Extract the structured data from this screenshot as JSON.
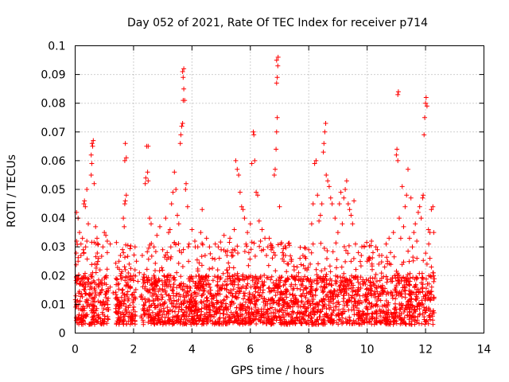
{
  "chart_data": {
    "type": "scatter",
    "title": "Day 052 of 2021, Rate Of TEC Index for receiver p714",
    "xlabel": "GPS time / hours",
    "ylabel": "ROTI / TECUs",
    "xlim": [
      0,
      14
    ],
    "ylim": [
      0,
      0.1
    ],
    "xticks": [
      0,
      2,
      4,
      6,
      8,
      10,
      12,
      14
    ],
    "xtick_labels": [
      "0",
      "2",
      "4",
      "6",
      "8",
      "10",
      "12",
      "14"
    ],
    "yticks": [
      0,
      0.01,
      0.02,
      0.03,
      0.04,
      0.05,
      0.06,
      0.07,
      0.08,
      0.09,
      0.1
    ],
    "ytick_labels": [
      "0",
      "0.01",
      "0.02",
      "0.03",
      "0.04",
      "0.05",
      "0.06",
      "0.07",
      "0.08",
      "0.09",
      "0.1"
    ],
    "grid": true,
    "marker": "+",
    "color": "#ff0000",
    "data_span_hours": [
      0,
      12.3
    ],
    "series": [
      {
        "name": "ROTI",
        "points": [
          [
            0.05,
            0.042
          ],
          [
            0.1,
            0.04
          ],
          [
            0.15,
            0.035
          ],
          [
            0.2,
            0.031
          ],
          [
            0.25,
            0.033
          ],
          [
            0.3,
            0.045
          ],
          [
            0.32,
            0.046
          ],
          [
            0.35,
            0.044
          ],
          [
            0.4,
            0.05
          ],
          [
            0.45,
            0.038
          ],
          [
            0.55,
            0.062
          ],
          [
            0.58,
            0.066
          ],
          [
            0.6,
            0.065
          ],
          [
            0.62,
            0.067
          ],
          [
            0.57,
            0.059
          ],
          [
            0.55,
            0.055
          ],
          [
            0.65,
            0.052
          ],
          [
            0.7,
            0.037
          ],
          [
            0.75,
            0.033
          ],
          [
            0.3,
            0.028
          ],
          [
            0.28,
            0.029
          ],
          [
            0.2,
            0.027
          ],
          [
            0.1,
            0.025
          ],
          [
            0.05,
            0.032
          ],
          [
            0.95,
            0.03
          ],
          [
            1.0,
            0.035
          ],
          [
            1.05,
            0.034
          ],
          [
            1.1,
            0.032
          ],
          [
            1.2,
            0.016
          ],
          [
            1.4,
            0.019
          ],
          [
            1.5,
            0.025
          ],
          [
            1.55,
            0.027
          ],
          [
            1.65,
            0.04
          ],
          [
            1.7,
            0.045
          ],
          [
            1.72,
            0.046
          ],
          [
            1.75,
            0.048
          ],
          [
            1.7,
            0.06
          ],
          [
            1.72,
            0.066
          ],
          [
            1.75,
            0.061
          ],
          [
            1.68,
            0.037
          ],
          [
            1.85,
            0.024
          ],
          [
            1.9,
            0.02
          ],
          [
            1.95,
            0.019
          ],
          [
            2.05,
            0.03
          ],
          [
            2.1,
            0.025
          ],
          [
            2.2,
            0.021
          ],
          [
            2.3,
            0.027
          ],
          [
            2.4,
            0.052
          ],
          [
            2.42,
            0.054
          ],
          [
            2.45,
            0.065
          ],
          [
            2.5,
            0.065
          ],
          [
            2.48,
            0.056
          ],
          [
            2.5,
            0.053
          ],
          [
            2.55,
            0.04
          ],
          [
            2.6,
            0.038
          ],
          [
            2.7,
            0.03
          ],
          [
            2.8,
            0.034
          ],
          [
            2.9,
            0.037
          ],
          [
            3.0,
            0.029
          ],
          [
            3.1,
            0.04
          ],
          [
            3.2,
            0.035
          ],
          [
            3.25,
            0.036
          ],
          [
            3.3,
            0.045
          ],
          [
            3.35,
            0.049
          ],
          [
            3.4,
            0.056
          ],
          [
            3.45,
            0.05
          ],
          [
            3.5,
            0.041
          ],
          [
            3.55,
            0.038
          ],
          [
            3.6,
            0.066
          ],
          [
            3.62,
            0.069
          ],
          [
            3.65,
            0.072
          ],
          [
            3.68,
            0.073
          ],
          [
            3.7,
            0.081
          ],
          [
            3.72,
            0.085
          ],
          [
            3.7,
            0.089
          ],
          [
            3.68,
            0.091
          ],
          [
            3.72,
            0.092
          ],
          [
            3.75,
            0.081
          ],
          [
            3.8,
            0.052
          ],
          [
            3.78,
            0.05
          ],
          [
            3.85,
            0.044
          ],
          [
            4.0,
            0.036
          ],
          [
            4.1,
            0.032
          ],
          [
            4.2,
            0.03
          ],
          [
            4.3,
            0.035
          ],
          [
            4.35,
            0.043
          ],
          [
            4.5,
            0.033
          ],
          [
            4.6,
            0.03
          ],
          [
            4.8,
            0.031
          ],
          [
            4.9,
            0.03
          ],
          [
            5.0,
            0.029
          ],
          [
            5.1,
            0.034
          ],
          [
            5.2,
            0.027
          ],
          [
            5.35,
            0.028
          ],
          [
            5.45,
            0.036
          ],
          [
            5.5,
            0.06
          ],
          [
            5.55,
            0.057
          ],
          [
            5.6,
            0.055
          ],
          [
            5.65,
            0.049
          ],
          [
            5.7,
            0.044
          ],
          [
            5.75,
            0.043
          ],
          [
            5.8,
            0.04
          ],
          [
            5.9,
            0.035
          ],
          [
            6.0,
            0.038
          ],
          [
            6.05,
            0.059
          ],
          [
            6.1,
            0.07
          ],
          [
            6.12,
            0.069
          ],
          [
            6.15,
            0.06
          ],
          [
            6.2,
            0.049
          ],
          [
            6.25,
            0.048
          ],
          [
            6.3,
            0.039
          ],
          [
            6.4,
            0.036
          ],
          [
            6.5,
            0.033
          ],
          [
            6.6,
            0.03
          ],
          [
            6.7,
            0.031
          ],
          [
            6.8,
            0.028
          ],
          [
            6.82,
            0.055
          ],
          [
            6.85,
            0.057
          ],
          [
            6.88,
            0.064
          ],
          [
            6.9,
            0.07
          ],
          [
            6.92,
            0.075
          ],
          [
            6.9,
            0.087
          ],
          [
            6.92,
            0.089
          ],
          [
            6.94,
            0.093
          ],
          [
            6.9,
            0.095
          ],
          [
            6.95,
            0.096
          ],
          [
            7.0,
            0.044
          ],
          [
            7.1,
            0.028
          ],
          [
            7.2,
            0.027
          ],
          [
            7.3,
            0.024
          ],
          [
            7.4,
            0.025
          ],
          [
            7.5,
            0.022
          ],
          [
            7.6,
            0.023
          ],
          [
            7.7,
            0.026
          ],
          [
            7.8,
            0.027
          ],
          [
            7.9,
            0.026
          ],
          [
            8.0,
            0.029
          ],
          [
            8.1,
            0.038
          ],
          [
            8.15,
            0.045
          ],
          [
            8.2,
            0.059
          ],
          [
            8.25,
            0.06
          ],
          [
            8.3,
            0.048
          ],
          [
            8.35,
            0.039
          ],
          [
            8.4,
            0.041
          ],
          [
            8.45,
            0.045
          ],
          [
            8.5,
            0.063
          ],
          [
            8.52,
            0.066
          ],
          [
            8.55,
            0.07
          ],
          [
            8.58,
            0.073
          ],
          [
            8.6,
            0.055
          ],
          [
            8.65,
            0.053
          ],
          [
            8.7,
            0.051
          ],
          [
            8.75,
            0.047
          ],
          [
            8.8,
            0.045
          ],
          [
            8.9,
            0.04
          ],
          [
            9.0,
            0.035
          ],
          [
            9.05,
            0.045
          ],
          [
            9.1,
            0.049
          ],
          [
            9.2,
            0.047
          ],
          [
            9.25,
            0.05
          ],
          [
            9.3,
            0.053
          ],
          [
            9.35,
            0.045
          ],
          [
            9.4,
            0.043
          ],
          [
            9.5,
            0.038
          ],
          [
            9.6,
            0.031
          ],
          [
            9.7,
            0.028
          ],
          [
            9.8,
            0.027
          ],
          [
            9.9,
            0.03
          ],
          [
            10.0,
            0.025
          ],
          [
            10.1,
            0.026
          ],
          [
            10.2,
            0.028
          ],
          [
            10.3,
            0.03
          ],
          [
            10.4,
            0.024
          ],
          [
            10.5,
            0.027
          ],
          [
            10.6,
            0.023
          ],
          [
            10.7,
            0.025
          ],
          [
            10.8,
            0.028
          ],
          [
            10.9,
            0.035
          ],
          [
            11.0,
            0.062
          ],
          [
            11.02,
            0.064
          ],
          [
            11.05,
            0.06
          ],
          [
            11.05,
            0.083
          ],
          [
            11.07,
            0.084
          ],
          [
            11.1,
            0.04
          ],
          [
            11.15,
            0.033
          ],
          [
            11.2,
            0.051
          ],
          [
            11.3,
            0.044
          ],
          [
            11.35,
            0.048
          ],
          [
            11.4,
            0.057
          ],
          [
            11.5,
            0.047
          ],
          [
            11.6,
            0.035
          ],
          [
            11.7,
            0.032
          ],
          [
            11.75,
            0.042
          ],
          [
            11.8,
            0.044
          ],
          [
            11.85,
            0.04
          ],
          [
            11.9,
            0.047
          ],
          [
            11.92,
            0.048
          ],
          [
            11.95,
            0.069
          ],
          [
            11.97,
            0.075
          ],
          [
            12.0,
            0.08
          ],
          [
            12.02,
            0.082
          ],
          [
            12.05,
            0.079
          ],
          [
            12.1,
            0.036
          ],
          [
            12.15,
            0.035
          ],
          [
            12.2,
            0.043
          ],
          [
            12.25,
            0.044
          ],
          [
            12.28,
            0.035
          ],
          [
            1.2,
            0.031
          ],
          [
            1.1,
            0.028
          ],
          [
            0.4,
            0.032
          ],
          [
            5.3,
            0.033
          ],
          [
            5.4,
            0.029
          ],
          [
            4.45,
            0.027
          ],
          [
            4.7,
            0.026
          ],
          [
            3.9,
            0.031
          ],
          [
            3.15,
            0.028
          ],
          [
            2.15,
            0.018
          ],
          [
            2.05,
            0.022
          ],
          [
            1.3,
            0.014
          ],
          [
            0.8,
            0.026
          ],
          [
            0.85,
            0.022
          ],
          [
            9.15,
            0.038
          ],
          [
            9.45,
            0.041
          ],
          [
            9.55,
            0.046
          ],
          [
            10.15,
            0.032
          ],
          [
            10.35,
            0.029
          ],
          [
            10.65,
            0.031
          ],
          [
            10.75,
            0.033
          ],
          [
            11.25,
            0.037
          ],
          [
            11.45,
            0.033
          ],
          [
            11.55,
            0.03
          ],
          [
            11.65,
            0.038
          ],
          [
            7.05,
            0.031
          ],
          [
            7.15,
            0.025
          ],
          [
            7.65,
            0.021
          ],
          [
            7.75,
            0.019
          ],
          [
            8.05,
            0.024
          ],
          [
            8.15,
            0.031
          ],
          [
            6.35,
            0.032
          ],
          [
            6.45,
            0.029
          ],
          [
            6.55,
            0.027
          ],
          [
            6.65,
            0.033
          ],
          [
            6.75,
            0.03
          ],
          [
            5.85,
            0.031
          ],
          [
            5.95,
            0.028
          ],
          [
            12.2,
            0.023
          ],
          [
            12.25,
            0.021
          ],
          [
            12.15,
            0.026
          ],
          [
            12.05,
            0.024
          ]
        ]
      }
    ],
    "dense_band": {
      "note": "dense cluster of points filling the lower band",
      "generator_seed": 52,
      "count": 2600,
      "x_range": [
        0,
        12.3
      ],
      "gaps": [
        [
          1.15,
          1.38
        ],
        [
          2.08,
          2.25
        ]
      ],
      "y_min": 0.003,
      "y_typical_max": 0.02
    }
  }
}
